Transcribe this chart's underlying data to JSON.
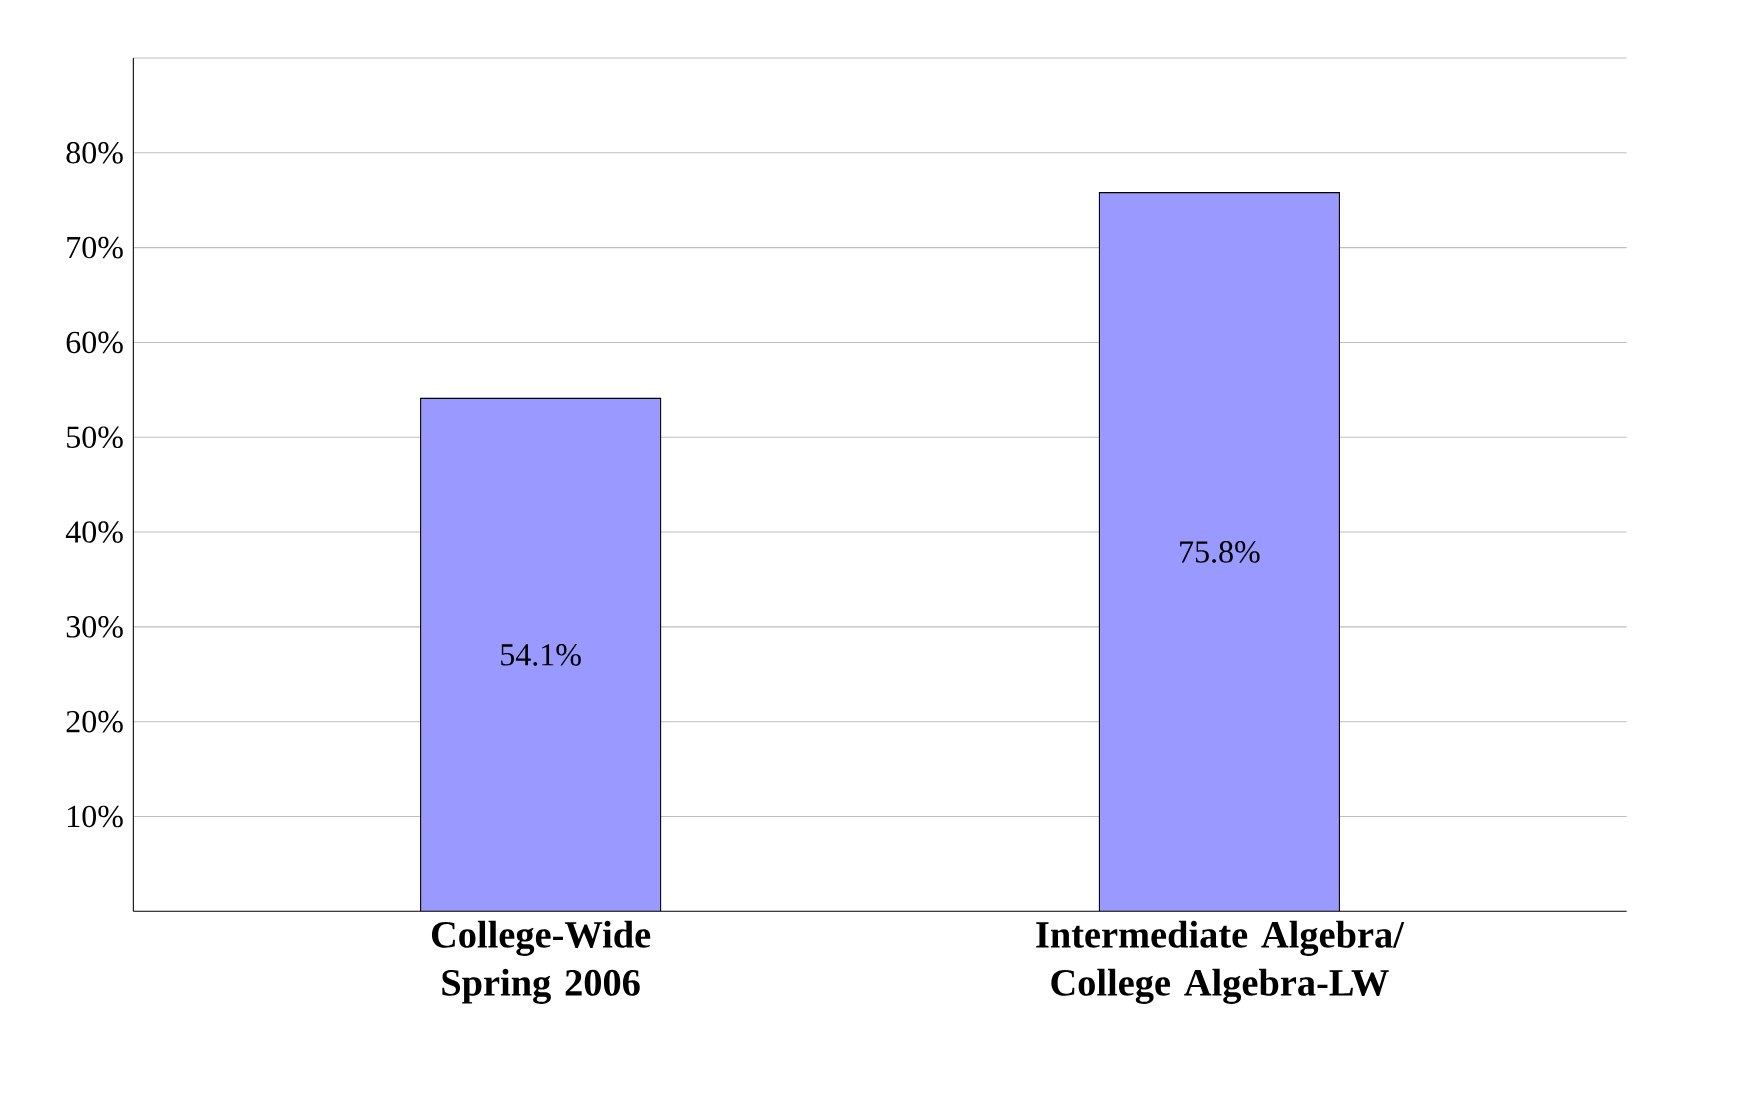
{
  "chart_data": {
    "type": "bar",
    "categories": [
      "College-Wide Spring 2006",
      "Intermediate Algebra/ College Algebra-LW"
    ],
    "values": [
      54.1,
      75.8
    ],
    "value_labels": [
      "54.1%",
      "75.8%"
    ],
    "color": "#9999ff",
    "ylim": [
      0,
      90
    ],
    "yticks": [
      {
        "value": 10,
        "label": "10%"
      },
      {
        "value": 20,
        "label": "20%"
      },
      {
        "value": 30,
        "label": "30%"
      },
      {
        "value": 40,
        "label": "40%"
      },
      {
        "value": 50,
        "label": "50%"
      },
      {
        "value": 60,
        "label": "60%"
      },
      {
        "value": 70,
        "label": "70%"
      },
      {
        "value": 80,
        "label": "80%"
      },
      {
        "value": 90,
        "label": null
      }
    ],
    "grid": "y"
  }
}
